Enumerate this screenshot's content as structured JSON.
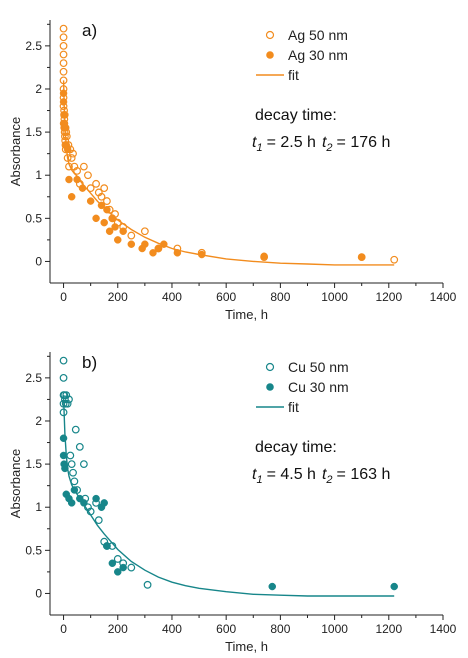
{
  "chart_data": [
    {
      "type": "scatter",
      "panel_label": "a)",
      "xlabel": "Time, h",
      "ylabel": "Absorbance",
      "xlim": [
        -50,
        1400
      ],
      "ylim": [
        -0.25,
        2.8
      ],
      "xticks": [
        "0",
        "200",
        "400",
        "600",
        "800",
        "1000",
        "1200",
        "1400"
      ],
      "yticks": [
        "0",
        "0.5",
        "1",
        "1.5",
        "2",
        "2.5"
      ],
      "color": "#F28C1E",
      "legend_position": "top-right",
      "annotation": {
        "title": "decay time:",
        "t1_symbol": "t",
        "t1_sub": "1",
        "t1_value": "= 2.5 h",
        "t2_symbol": "t",
        "t2_sub": "2",
        "t2_value": "= 176 h"
      },
      "series": [
        {
          "name": "Ag 50 nm",
          "marker": "open-circle",
          "x": [
            0,
            0,
            0,
            0,
            0,
            0,
            0,
            0,
            0,
            0,
            2,
            2,
            3,
            3,
            4,
            4,
            5,
            6,
            7,
            8,
            10,
            12,
            15,
            18,
            20,
            25,
            30,
            35,
            40,
            50,
            60,
            75,
            90,
            100,
            120,
            130,
            140,
            150,
            160,
            170,
            180,
            190,
            200,
            220,
            250,
            300,
            350,
            420,
            510,
            740,
            1100,
            1220
          ],
          "y": [
            2.7,
            2.6,
            2.5,
            2.4,
            2.3,
            2.2,
            2.1,
            2.0,
            1.9,
            1.8,
            1.75,
            1.7,
            1.65,
            1.6,
            1.55,
            1.5,
            1.45,
            1.4,
            1.35,
            1.3,
            1.5,
            1.45,
            1.2,
            1.35,
            1.1,
            1.3,
            1.2,
            1.25,
            1.1,
            1.05,
            0.9,
            1.1,
            1.0,
            0.85,
            0.9,
            0.8,
            0.75,
            0.85,
            0.7,
            0.6,
            0.5,
            0.55,
            0.45,
            0.4,
            0.3,
            0.35,
            0.15,
            0.15,
            0.1,
            0.05,
            0.05,
            0.02
          ]
        },
        {
          "name": "Ag 30 nm",
          "marker": "filled-circle",
          "x": [
            0,
            0,
            0,
            2,
            5,
            8,
            10,
            15,
            20,
            30,
            50,
            70,
            100,
            120,
            140,
            150,
            160,
            170,
            180,
            190,
            200,
            220,
            250,
            290,
            300,
            330,
            350,
            370,
            420,
            510,
            740,
            1100
          ],
          "y": [
            1.95,
            1.85,
            1.6,
            1.55,
            1.7,
            1.55,
            1.35,
            1.3,
            0.95,
            0.75,
            0.95,
            0.85,
            0.7,
            0.5,
            0.65,
            0.45,
            0.6,
            0.35,
            0.5,
            0.4,
            0.25,
            0.35,
            0.2,
            0.15,
            0.2,
            0.1,
            0.15,
            0.2,
            0.1,
            0.08,
            0.06,
            0.05
          ]
        },
        {
          "name": "fit",
          "marker": "line",
          "x": [
            0,
            2,
            5,
            10,
            15,
            20,
            30,
            40,
            50,
            60,
            75,
            100,
            125,
            150,
            175,
            200,
            250,
            300,
            350,
            400,
            450,
            500,
            600,
            700,
            800,
            900,
            1000,
            1100,
            1220
          ],
          "y": [
            2.1,
            1.85,
            1.57,
            1.32,
            1.2,
            1.13,
            1.06,
            1.02,
            0.99,
            0.94,
            0.88,
            0.79,
            0.7,
            0.62,
            0.55,
            0.48,
            0.37,
            0.28,
            0.21,
            0.15,
            0.11,
            0.08,
            0.03,
            0.0,
            -0.02,
            -0.03,
            -0.04,
            -0.04,
            -0.04
          ]
        }
      ]
    },
    {
      "type": "scatter",
      "panel_label": "b)",
      "xlabel": "Time, h",
      "ylabel": "Absorbance",
      "xlim": [
        -50,
        1400
      ],
      "ylim": [
        -0.25,
        2.8
      ],
      "xticks": [
        "0",
        "200",
        "400",
        "600",
        "800",
        "1000",
        "1200",
        "1400"
      ],
      "yticks": [
        "0",
        "0.5",
        "1",
        "1.5",
        "2",
        "2.5"
      ],
      "color": "#17868A",
      "legend_position": "top-right",
      "annotation": {
        "title": "decay time:",
        "t1_symbol": "t",
        "t1_sub": "1",
        "t1_value": "= 4.5 h",
        "t2_symbol": "t",
        "t2_sub": "2",
        "t2_value": "= 163 h"
      },
      "series": [
        {
          "name": "Cu 50 nm",
          "marker": "open-circle",
          "x": [
            0,
            0,
            0,
            0,
            0,
            3,
            5,
            8,
            10,
            15,
            20,
            25,
            30,
            35,
            40,
            45,
            50,
            60,
            75,
            80,
            90,
            100,
            120,
            130,
            150,
            160,
            180,
            200,
            220,
            250,
            310
          ],
          "y": [
            2.7,
            2.5,
            2.3,
            2.2,
            2.1,
            2.3,
            2.25,
            2.2,
            2.3,
            2.2,
            2.25,
            1.6,
            1.5,
            1.4,
            1.3,
            1.9,
            1.2,
            1.7,
            1.5,
            1.1,
            1.0,
            0.95,
            1.05,
            0.85,
            0.6,
            0.55,
            0.55,
            0.4,
            0.35,
            0.3,
            0.1
          ]
        },
        {
          "name": "Cu 30 nm",
          "marker": "filled-circle",
          "x": [
            0,
            0,
            2,
            5,
            10,
            20,
            30,
            40,
            60,
            75,
            120,
            140,
            150,
            160,
            180,
            200,
            220,
            770,
            1220
          ],
          "y": [
            1.8,
            1.6,
            1.5,
            1.45,
            1.15,
            1.1,
            1.05,
            1.2,
            1.1,
            1.05,
            1.1,
            1.0,
            1.05,
            0.55,
            0.35,
            0.25,
            0.3,
            0.08,
            0.08
          ]
        },
        {
          "name": "fit",
          "marker": "line",
          "x": [
            0,
            2,
            5,
            10,
            15,
            20,
            30,
            40,
            50,
            60,
            75,
            100,
            125,
            150,
            175,
            200,
            250,
            300,
            350,
            400,
            450,
            500,
            600,
            700,
            800,
            900,
            1000,
            1100,
            1220
          ],
          "y": [
            2.3,
            2.1,
            1.85,
            1.6,
            1.45,
            1.36,
            1.26,
            1.2,
            1.15,
            1.1,
            1.03,
            0.91,
            0.79,
            0.69,
            0.6,
            0.51,
            0.37,
            0.27,
            0.19,
            0.13,
            0.09,
            0.06,
            0.02,
            -0.01,
            -0.02,
            -0.03,
            -0.03,
            -0.03,
            -0.03
          ]
        }
      ]
    }
  ]
}
